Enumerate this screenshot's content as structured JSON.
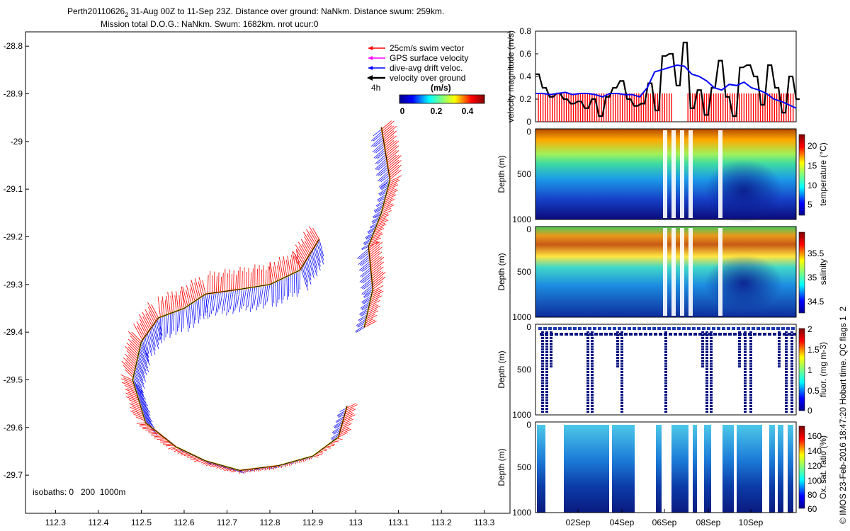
{
  "header": {
    "title_main": "Perth20110626",
    "title_sub": "2",
    "title_rest": " 31-Aug 00Z to 11-Sep 23Z. Distance over ground: NaNkm. Distance swum: 259km.",
    "subtitle": "Mission total D.O.G.: NaNkm. Swum: 1682km. nrot ucur:0"
  },
  "map": {
    "legend": [
      {
        "label": "25cm/s swim vector",
        "color": "#ff0000"
      },
      {
        "label": "GPS surface velocity",
        "color": "#ff00ff"
      },
      {
        "label": "dive-avg drift veloc.",
        "color": "#0000ff"
      },
      {
        "label": "velocity over ground",
        "color": "#000000"
      }
    ],
    "time_scale_label": "4h",
    "colorbar": {
      "unit_label": "(m/s)",
      "ticks": [
        "0",
        "0.2",
        "0.4"
      ]
    },
    "isobaths_label": "isobaths: 0   200  1000m",
    "x_ticks": [
      "112.3",
      "112.4",
      "112.5",
      "112.6",
      "112.7",
      "112.8",
      "112.9",
      "113",
      "113.1",
      "113.2",
      "113.3"
    ],
    "y_ticks": [
      "-28.8",
      "-28.9",
      "-29",
      "-29.1",
      "-29.2",
      "-29.3",
      "-29.4",
      "-29.5",
      "-29.6",
      "-29.7"
    ]
  },
  "panels": {
    "velocity": {
      "ylabel": "velocity magnitude (m/s)",
      "y_ticks": [
        "0.8",
        "0.6",
        "0.4",
        "0.2",
        "0"
      ]
    },
    "temperature": {
      "ylabel": "Depth (m)",
      "y_ticks": [
        "0",
        "500",
        "1000"
      ],
      "cbar_label": "temperature (°C)",
      "cbar_ticks": [
        "20",
        "15",
        "10",
        "5"
      ]
    },
    "salinity": {
      "ylabel": "Depth (m)",
      "y_ticks": [
        "0",
        "500",
        "1000"
      ],
      "cbar_label": "salinity",
      "cbar_ticks": [
        "35.5",
        "35",
        "34.5"
      ]
    },
    "fluor": {
      "ylabel": "Depth (m)",
      "y_ticks": [
        "0",
        "500",
        "1000"
      ],
      "cbar_label": "fluor. (mg m-3)",
      "cbar_ticks": [
        "2",
        "1.5",
        "1",
        "0.5",
        "0"
      ]
    },
    "oxygen": {
      "ylabel": "Depth (m)",
      "y_ticks": [
        "0",
        "500",
        "1000"
      ],
      "cbar_label": "Ox. sat. ratio (%)",
      "cbar_ticks": [
        "160",
        "140",
        "120",
        "100",
        "80",
        "60"
      ]
    },
    "x_ticks": [
      "02Sep",
      "04Sep",
      "06Sep",
      "08Sep",
      "10Sep"
    ]
  },
  "side_note": "© IMOS 23-Feb-2016 18:47:20 Hobart time. QC flags 1  2",
  "chart_data": [
    {
      "type": "scatter",
      "name": "glider track map",
      "xlim": [
        112.23,
        113.36
      ],
      "ylim": [
        -29.78,
        -28.77
      ],
      "grid": false,
      "track": [
        [
          112.915,
          -29.205
        ],
        [
          112.87,
          -29.27
        ],
        [
          112.8,
          -29.3
        ],
        [
          112.73,
          -29.31
        ],
        [
          112.65,
          -29.32
        ],
        [
          112.6,
          -29.35
        ],
        [
          112.54,
          -29.37
        ],
        [
          112.5,
          -29.42
        ],
        [
          112.48,
          -29.5
        ],
        [
          112.51,
          -29.59
        ],
        [
          112.58,
          -29.64
        ],
        [
          112.65,
          -29.67
        ],
        [
          112.73,
          -29.69
        ],
        [
          112.82,
          -29.68
        ],
        [
          112.9,
          -29.66
        ],
        [
          112.96,
          -29.62
        ],
        [
          112.98,
          -29.555
        ],
        [
          113.02,
          -29.39
        ],
        [
          113.04,
          -29.31
        ],
        [
          113.03,
          -29.22
        ],
        [
          113.06,
          -29.15
        ],
        [
          113.08,
          -29.08
        ],
        [
          113.06,
          -28.97
        ]
      ]
    },
    {
      "type": "line",
      "name": "velocity magnitude",
      "xlim": [
        0,
        12
      ],
      "ylim": [
        0,
        0.8
      ],
      "series": [
        {
          "color": "#000000",
          "values": [
            0.42,
            0.3,
            0.22,
            0.25,
            0.2,
            0.16,
            0.18,
            0.12,
            0.2,
            0.05,
            0.22,
            0.3,
            0.36,
            0.2,
            0.14,
            0.16,
            0.34,
            0.1,
            0.58,
            0.6,
            0.32,
            0.7,
            0.12,
            0.28,
            0.06,
            0.3,
            0.54,
            0.22,
            0.05,
            0.48,
            0.5,
            0.4,
            0.15,
            0.5,
            0.3,
            0.08,
            0.4,
            0.2
          ]
        },
        {
          "color": "#0000ff",
          "values": [
            0.25,
            0.25,
            0.24,
            0.25,
            0.26,
            0.24,
            0.25,
            0.25,
            0.24,
            0.22,
            0.25,
            0.25,
            0.24,
            0.24,
            0.22,
            0.3,
            0.44,
            0.46,
            0.48,
            0.5,
            0.49,
            0.42,
            0.4,
            0.36,
            0.3,
            0.28,
            0.33,
            0.32,
            0.35,
            0.3,
            0.28,
            0.25,
            0.2,
            0.18,
            0.15,
            0.12
          ]
        }
      ]
    }
  ]
}
